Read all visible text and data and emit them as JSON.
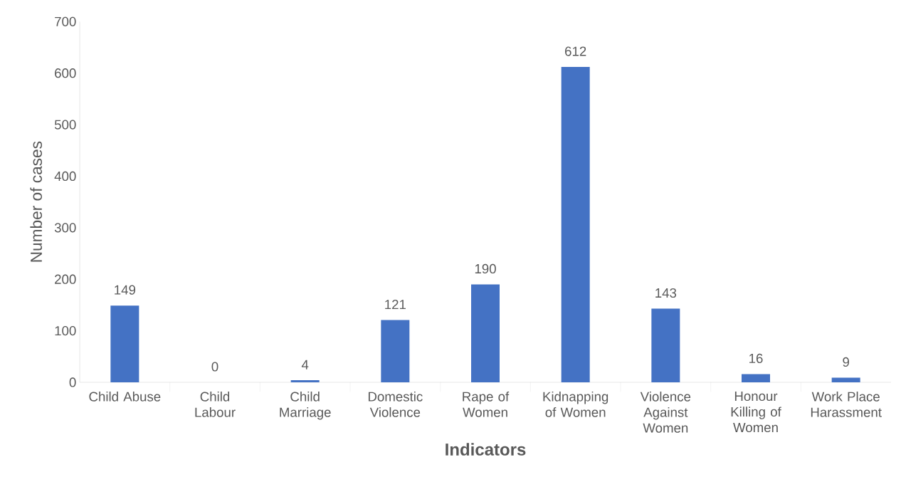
{
  "chart_data": {
    "type": "bar",
    "xlabel": "Indicators",
    "ylabel": "Number of cases",
    "categories": [
      "Child Abuse",
      "Child Labour",
      "Child Marriage",
      "Domestic Violence",
      "Rape of Women",
      "Kidnapping of Women",
      "Violence Against Women",
      "Honour Killing of Women",
      "Work Place Harassment"
    ],
    "values": [
      149,
      0,
      4,
      121,
      190,
      612,
      143,
      16,
      9
    ],
    "color": "#4472c4",
    "ylim": [
      0,
      700
    ],
    "yticks": [
      0,
      100,
      200,
      300,
      400,
      500,
      600,
      700
    ],
    "data_labels": true
  }
}
